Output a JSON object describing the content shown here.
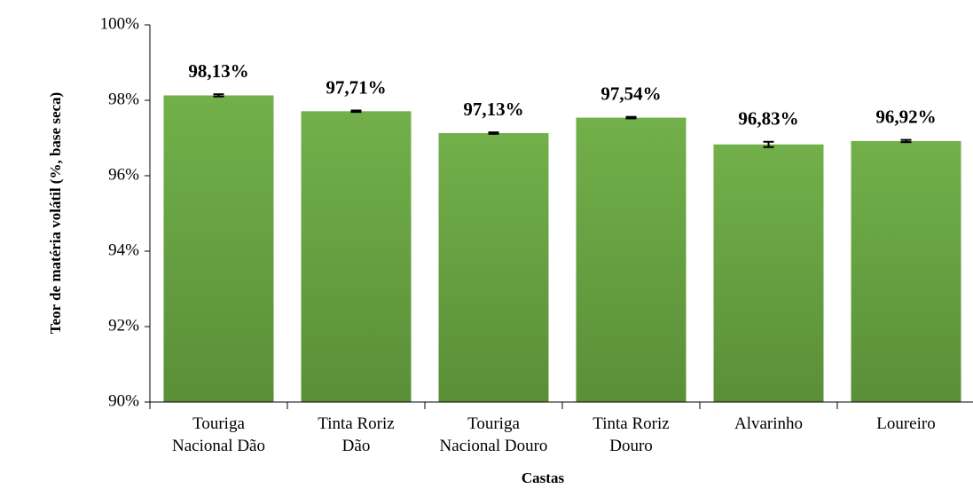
{
  "chart_data": {
    "type": "bar",
    "x_label": "Castas",
    "y_label": "Teor de matéria volátil (%, base seca)",
    "categories": [
      "Touriga\nNacional Dão",
      "Tinta Roriz\nDão",
      "Touriga\nNacional Douro",
      "Tinta Roriz\nDouro",
      "Alvarinho",
      "Loureiro"
    ],
    "values": [
      98.13,
      97.71,
      97.13,
      97.54,
      96.83,
      96.92
    ],
    "value_labels": [
      "98,13%",
      "97,71%",
      "97,13%",
      "97,54%",
      "96,83%",
      "96,92%"
    ],
    "errors": [
      0.03,
      0.02,
      0.02,
      0.02,
      0.07,
      0.03
    ],
    "color": "#6aa444",
    "ylim": [
      90,
      100
    ],
    "yticks": [
      {
        "value": 90,
        "label": "90%"
      },
      {
        "value": 92,
        "label": "92%"
      },
      {
        "value": 94,
        "label": "94%"
      },
      {
        "value": 96,
        "label": "96%"
      },
      {
        "value": 98,
        "label": "98%"
      },
      {
        "value": 100,
        "label": "100%"
      }
    ],
    "grid": false
  }
}
